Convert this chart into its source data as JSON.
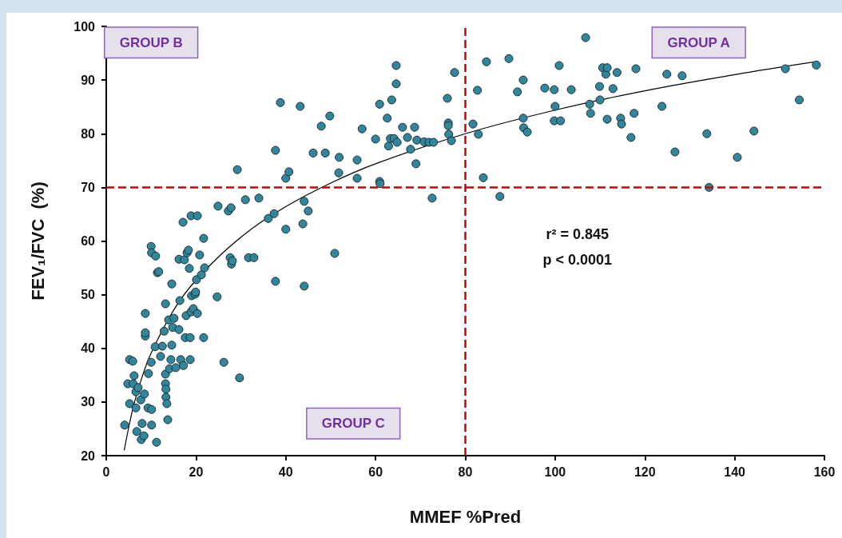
{
  "chart_data": {
    "type": "scatter",
    "xlabel": "MMEF %Pred",
    "ylabel": "FEV₁/FVC  (%)",
    "xlim": [
      0,
      160
    ],
    "xticks": [
      0,
      20,
      40,
      60,
      80,
      100,
      120,
      140,
      160
    ],
    "ylim": [
      20,
      100
    ],
    "yticks": [
      20,
      30,
      40,
      50,
      60,
      70,
      80,
      90,
      100
    ],
    "marker": "circle",
    "grid": false,
    "ref_lines": [
      {
        "axis": "x",
        "value": 80,
        "color": "#cc0000",
        "line_style": "dashed"
      },
      {
        "axis": "y",
        "value": 70,
        "color": "#cc0000",
        "line_style": "dashed"
      }
    ],
    "annotations": [
      "GROUP B",
      "GROUP A",
      "GROUP C",
      "r² = 0.845",
      "p < 0.0001"
    ],
    "series": [
      {
        "color": "#31869b",
        "x": [
          4.1,
          4.8,
          5.2,
          5.9,
          5.2,
          6.0,
          6.2,
          6.6,
          6.8,
          6.6,
          7.1,
          7.7,
          7.8,
          8.0,
          8.4,
          8.5,
          8.7,
          8.7,
          8.7,
          9.4,
          9.3,
          10.0,
          10.1,
          10.1,
          10.0,
          10.1,
          11.0,
          10.9,
          11.2,
          11.4,
          11.7,
          12.1,
          12.5,
          12.9,
          13.2,
          13.2,
          13.2,
          13.3,
          13.3,
          13.5,
          13.7,
          13.9,
          14.1,
          14.4,
          14.6,
          14.6,
          14.8,
          15.1,
          15.5,
          16.2,
          16.2,
          16.4,
          16.6,
          17.2,
          17.1,
          17.4,
          17.6,
          17.8,
          18.0,
          18.3,
          18.5,
          18.7,
          18.7,
          18.9,
          18.9,
          19.0,
          19.4,
          19.8,
          19.9,
          20.1,
          20.3,
          20.3,
          20.8,
          21.2,
          21.7,
          21.7,
          21.9,
          24.7,
          24.9,
          26.2,
          27.2,
          27.6,
          27.8,
          27.9,
          28.1,
          29.2,
          29.7,
          31.0,
          31.7,
          32.9,
          34.0,
          36.1,
          37.4,
          37.7,
          37.7,
          38.8,
          40.0,
          40.0,
          40.7,
          43.2,
          43.8,
          44.1,
          44.1,
          45.0,
          46.1,
          47.9,
          48.8,
          49.8,
          50.9,
          51.8,
          51.9,
          55.9,
          55.9,
          57.0,
          60.0,
          60.9,
          60.9,
          61.0,
          62.6,
          62.9,
          63.3,
          63.6,
          64.1,
          64.6,
          64.6,
          64.8,
          66.0,
          67.1,
          67.8,
          68.7,
          69.0,
          69.2,
          70.8,
          71.9,
          72.6,
          72.9,
          76.0,
          76.2,
          76.2,
          76.3,
          76.9,
          77.6,
          81.7,
          82.7,
          82.9,
          84.0,
          84.7,
          87.7,
          89.7,
          91.6,
          92.9,
          92.9,
          93.0,
          93.8,
          97.7,
          99.8,
          100.0,
          99.8,
          100.9,
          101.2,
          103.6,
          107.7,
          106.8,
          107.9,
          109.9,
          110.0,
          110.6,
          111.3,
          111.6,
          111.6,
          112.9,
          113.8,
          114.6,
          114.8,
          116.9,
          117.6,
          118.0,
          123.8,
          124.9,
          126.7,
          128.3,
          133.8,
          134.3,
          144.3,
          140.6,
          151.3,
          154.4,
          158.2
        ],
        "values": [
          25.7,
          33.4,
          37.9,
          37.6,
          29.7,
          33.4,
          34.9,
          28.9,
          24.5,
          31.9,
          32.7,
          30.4,
          23.0,
          26.0,
          23.7,
          31.5,
          42.3,
          42.9,
          46.5,
          35.3,
          28.9,
          37.4,
          28.6,
          25.7,
          59.0,
          57.8,
          57.2,
          40.3,
          22.5,
          54.1,
          54.3,
          38.5,
          40.4,
          43.2,
          48.3,
          35.2,
          33.4,
          32.4,
          30.9,
          29.7,
          26.7,
          45.3,
          36.2,
          37.9,
          52.0,
          40.6,
          43.9,
          45.6,
          36.4,
          56.6,
          43.5,
          48.9,
          37.9,
          36.8,
          63.5,
          56.5,
          42.0,
          46.1,
          57.8,
          58.3,
          54.9,
          42.0,
          37.9,
          64.7,
          46.8,
          49.8,
          47.4,
          50.1,
          50.5,
          52.8,
          64.7,
          46.5,
          57.4,
          53.7,
          60.5,
          42.0,
          55.0,
          49.6,
          66.5,
          37.4,
          65.6,
          56.9,
          66.2,
          55.7,
          56.3,
          73.3,
          34.5,
          67.7,
          56.9,
          56.9,
          68.0,
          64.2,
          65.1,
          76.9,
          52.5,
          85.8,
          62.2,
          71.7,
          72.9,
          85.1,
          63.2,
          51.6,
          67.4,
          65.6,
          76.4,
          81.4,
          76.4,
          83.3,
          57.7,
          72.7,
          75.6,
          75.1,
          71.7,
          80.9,
          79.0,
          85.5,
          71.1,
          70.7,
          82.9,
          77.7,
          79.1,
          86.3,
          79.1,
          92.7,
          89.3,
          78.4,
          81.2,
          79.3,
          77.1,
          81.2,
          74.4,
          78.8,
          78.5,
          78.4,
          68.0,
          78.4,
          86.6,
          82.0,
          81.5,
          79.9,
          78.7,
          91.4,
          81.8,
          88.1,
          79.9,
          71.8,
          93.4,
          68.3,
          94.0,
          87.8,
          90.0,
          82.9,
          81.1,
          80.3,
          88.5,
          88.2,
          85.1,
          82.4,
          92.7,
          82.4,
          88.2,
          85.5,
          97.9,
          83.8,
          88.8,
          86.3,
          92.3,
          91.1,
          92.3,
          82.7,
          88.4,
          91.4,
          82.9,
          81.8,
          79.3,
          83.8,
          92.1,
          85.1,
          91.1,
          76.6,
          90.8,
          80.0,
          70.0,
          80.5,
          75.6,
          92.1,
          86.3,
          92.8
        ]
      },
      {
        "type": "line",
        "color": "#000000",
        "marker": "none",
        "x": [
          4,
          6,
          8,
          10,
          15,
          20,
          30,
          40,
          50,
          60,
          80,
          100,
          120,
          140,
          158
        ],
        "values": [
          21.0,
          29.0,
          34.7,
          39.1,
          47.1,
          52.7,
          60.7,
          66.4,
          70.8,
          74.4,
          80.0,
          84.4,
          88.0,
          91.0,
          93.4
        ]
      }
    ]
  }
}
